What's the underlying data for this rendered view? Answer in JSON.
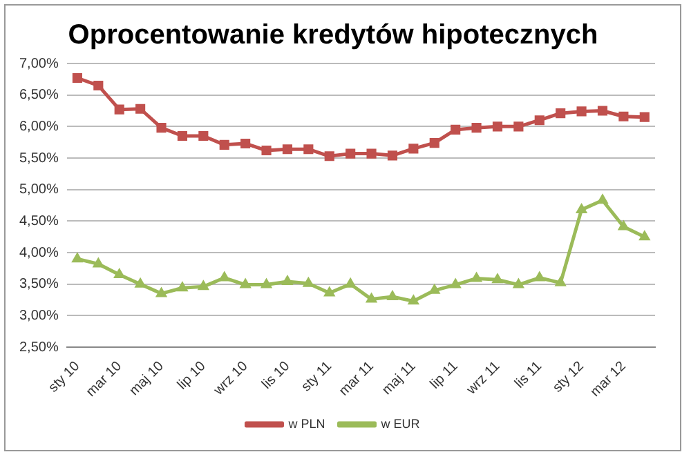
{
  "chart_data": {
    "type": "line",
    "title": "Oprocentowanie kredytów hipotecznych",
    "categories": [
      "sty 10",
      null,
      "mar 10",
      null,
      "maj 10",
      null,
      "lip 10",
      null,
      "wrz 10",
      null,
      "lis 10",
      null,
      "sty 11",
      null,
      "mar 11",
      null,
      "maj 11",
      null,
      "lip 11",
      null,
      "wrz 11",
      null,
      "lis 11",
      null,
      "sty 12",
      null,
      "mar 12",
      null
    ],
    "series": [
      {
        "name": "w PLN",
        "color": "#c0504d",
        "marker": "square",
        "values": [
          6.77,
          6.65,
          6.27,
          6.28,
          5.98,
          5.85,
          5.85,
          5.71,
          5.73,
          5.62,
          5.64,
          5.64,
          5.53,
          5.57,
          5.57,
          5.54,
          5.65,
          5.74,
          5.95,
          5.98,
          6.0,
          6.0,
          6.1,
          6.21,
          6.24,
          6.25,
          6.16,
          6.15
        ]
      },
      {
        "name": "w EUR",
        "color": "#9bbb59",
        "marker": "triangle",
        "values": [
          3.9,
          3.82,
          3.65,
          3.5,
          3.35,
          3.44,
          3.46,
          3.6,
          3.49,
          3.49,
          3.54,
          3.51,
          3.36,
          3.5,
          3.26,
          3.3,
          3.23,
          3.4,
          3.49,
          3.59,
          3.57,
          3.49,
          3.6,
          3.52,
          4.68,
          4.83,
          4.41,
          4.25
        ]
      }
    ],
    "ylim": [
      2.5,
      7
    ],
    "yticks": [
      {
        "value": 2.5,
        "label": "2,50%"
      },
      {
        "value": 3,
        "label": "3,00%"
      },
      {
        "value": 3.5,
        "label": "3,50%"
      },
      {
        "value": 4,
        "label": "4,00%"
      },
      {
        "value": 4.5,
        "label": "4,50%"
      },
      {
        "value": 5,
        "label": "5,00%"
      },
      {
        "value": 5.5,
        "label": "5,50%"
      },
      {
        "value": 6,
        "label": "6,00%"
      },
      {
        "value": 6.5,
        "label": "6,50%"
      },
      {
        "value": 7,
        "label": "7,00%"
      }
    ],
    "grid": "y",
    "legend": "bottom",
    "line_style": "solid"
  }
}
